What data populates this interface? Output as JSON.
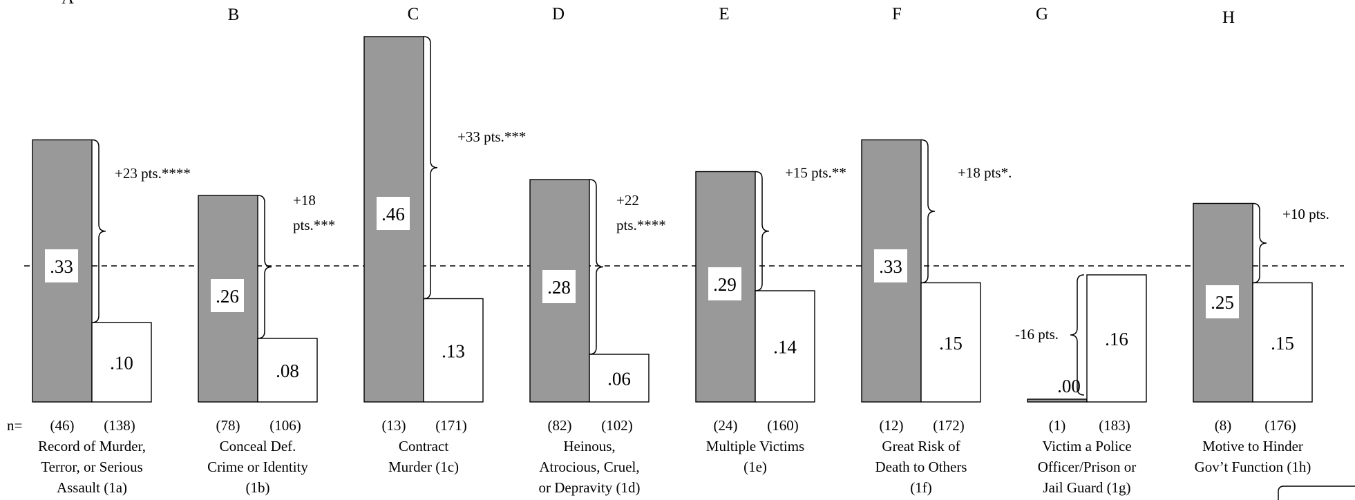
{
  "chart_data": {
    "type": "bar",
    "title": "",
    "xlabel": "",
    "ylabel": "",
    "ylim": [
      0,
      0.5
    ],
    "reference_line_style": "dashed",
    "n_prefix": "n=",
    "colors": {
      "gray_bar": "#999999",
      "white_bar": "#ffffff",
      "stroke": "#000000"
    },
    "groups": [
      {
        "letter": "A",
        "gray_value": 0.33,
        "gray_label": ".33",
        "white_value": 0.1,
        "white_label": ".10",
        "n_gray": "(46)",
        "n_white": "(138)",
        "diff_label": [
          "+23 pts.****"
        ],
        "label": [
          "Record of Murder,",
          "Terror, or Serious",
          "Assault (1a)"
        ]
      },
      {
        "letter": "B",
        "gray_value": 0.26,
        "gray_label": ".26",
        "white_value": 0.08,
        "white_label": ".08",
        "n_gray": "(78)",
        "n_white": "(106)",
        "diff_label": [
          "+18",
          "pts.***"
        ],
        "label": [
          "Conceal Def.",
          "Crime or Identity",
          "(1b)"
        ]
      },
      {
        "letter": "C",
        "gray_value": 0.46,
        "gray_label": ".46",
        "white_value": 0.13,
        "white_label": ".13",
        "n_gray": "(13)",
        "n_white": "(171)",
        "diff_label": [
          "+33 pts.***"
        ],
        "label": [
          "Contract",
          "Murder (1c)"
        ]
      },
      {
        "letter": "D",
        "gray_value": 0.28,
        "gray_label": ".28",
        "white_value": 0.06,
        "white_label": ".06",
        "n_gray": "(82)",
        "n_white": "(102)",
        "diff_label": [
          "+22",
          "pts.****"
        ],
        "label": [
          "Heinous,",
          "Atrocious, Cruel,",
          "or Depravity (1d)"
        ]
      },
      {
        "letter": "E",
        "gray_value": 0.29,
        "gray_label": ".29",
        "white_value": 0.14,
        "white_label": ".14",
        "n_gray": "(24)",
        "n_white": "(160)",
        "diff_label": [
          "+15 pts.**"
        ],
        "label": [
          "Multiple Victims",
          "(1e)"
        ]
      },
      {
        "letter": "F",
        "gray_value": 0.33,
        "gray_label": ".33",
        "white_value": 0.15,
        "white_label": ".15",
        "n_gray": "(12)",
        "n_white": "(172)",
        "diff_label": [
          "+18 pts*."
        ],
        "label": [
          "Great Risk of",
          "Death to Others",
          "(1f)"
        ]
      },
      {
        "letter": "G",
        "gray_value": 0.0,
        "gray_label": ".00",
        "white_value": 0.16,
        "white_label": ".16",
        "n_gray": "(1)",
        "n_white": "(183)",
        "diff_label": [
          "-16 pts."
        ],
        "label": [
          "Victim a Police",
          "Officer/Prison or",
          "Jail Guard (1g)"
        ]
      },
      {
        "letter": "H",
        "gray_value": 0.25,
        "gray_label": ".25",
        "white_value": 0.15,
        "white_label": ".15",
        "n_gray": "(8)",
        "n_white": "(176)",
        "diff_label": [
          "+10 pts."
        ],
        "label": [
          "Motive to Hinder",
          "Gov’t Function (1h)"
        ]
      }
    ]
  }
}
